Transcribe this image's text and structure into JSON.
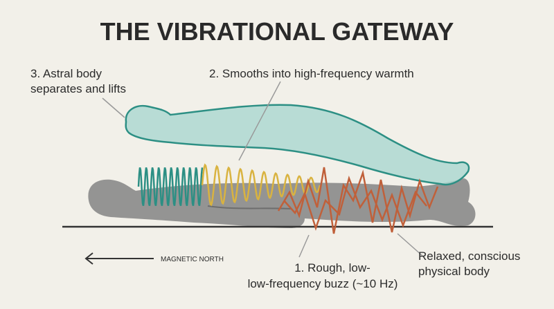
{
  "title": "THE VIBRATIONAL GATEWAY",
  "labels": {
    "astral": [
      "3. Astral body",
      "separates and lifts"
    ],
    "smooth": [
      "2. Smooths into high-frequency warmth"
    ],
    "rough": [
      "1. Rough, low-",
      "low-frequency buzz (~10 Hz)"
    ],
    "physical": [
      "Relaxed, conscious",
      "physical body"
    ],
    "north": "MAGNETIC NORTH"
  }
}
